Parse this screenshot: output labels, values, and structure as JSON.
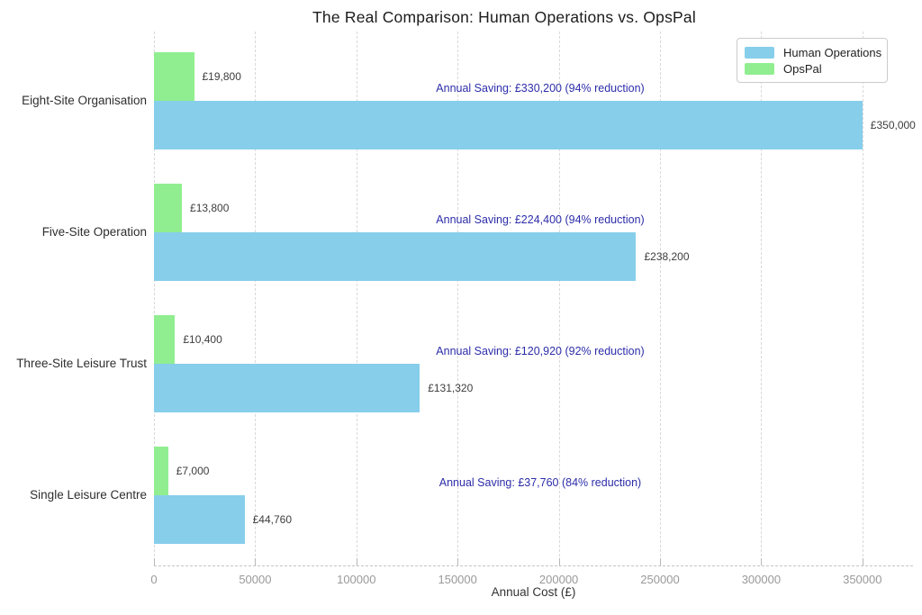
{
  "chart_data": {
    "type": "bar",
    "orientation": "horizontal",
    "title": "The Real Comparison: Human Operations vs. OpsPal",
    "xlabel": "Annual Cost (£)",
    "xlim": [
      0,
      375000
    ],
    "xticks": [
      0,
      50000,
      100000,
      150000,
      200000,
      250000,
      300000,
      350000
    ],
    "grid": "vertical-dashed",
    "legend_position": "upper right",
    "categories": [
      "Eight-Site Organisation",
      "Five-Site Operation",
      "Three-Site Leisure Trust",
      "Single Leisure Centre"
    ],
    "series": [
      {
        "name": "Human Operations",
        "color": "#87CEEB",
        "values": [
          350000,
          238200,
          131320,
          44760
        ],
        "labels": [
          "£350,000",
          "£238,200",
          "£131,320",
          "£44,760"
        ]
      },
      {
        "name": "OpsPal",
        "color": "#90EE90",
        "values": [
          19800,
          13800,
          10400,
          7000
        ],
        "labels": [
          "£19,800",
          "£13,800",
          "£10,400",
          "£7,000"
        ]
      }
    ],
    "annotations": [
      {
        "text": "Annual Saving: £330,200 (94% reduction)"
      },
      {
        "text": "Annual Saving: £224,400 (94% reduction)"
      },
      {
        "text": "Annual Saving: £120,920 (92% reduction)"
      },
      {
        "text": "Annual Saving: £37,760 (84% reduction)"
      }
    ],
    "annotation_color": "#2d2daa",
    "colors": {
      "background": "#ffffff",
      "gridline": "#d9d9d9",
      "tick_label": "#999999",
      "title": "#1c1c1c"
    }
  }
}
